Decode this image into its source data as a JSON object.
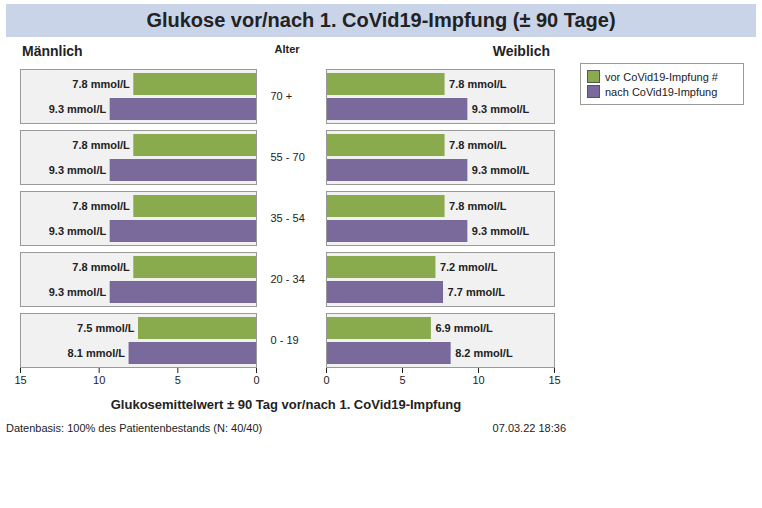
{
  "title": "Glukose vor/nach 1. CoVid19-Impfung (± 90 Tage)",
  "xlabel": "Glukosemittelwert ± 90 Tag vor/nach 1. CoVid19-Impfung",
  "footer": "Datenbasis: 100% des Patientenbestands (N: 40/40)",
  "date": "07.03.22 18:36",
  "chart_data": [
    {
      "type": "bar",
      "orientation": "horizontal",
      "title": "Männlich",
      "ylabel": "Alter",
      "categories": [
        "70 +",
        "55 - 70",
        "35 - 54",
        "20 - 34",
        "0 - 19"
      ],
      "series": [
        {
          "name": "vor CoVid19-Impfung #",
          "color": "#8aaa4e",
          "values": [
            7.8,
            7.8,
            7.8,
            7.8,
            7.5
          ],
          "value_labels": [
            "7.8 mmol/L",
            "7.8 mmol/L",
            "7.8 mmol/L",
            "7.8 mmol/L",
            "7.5 mmol/L"
          ]
        },
        {
          "name": "nach CoVid19-Impfung",
          "color": "#7a6a9c",
          "values": [
            9.3,
            9.3,
            9.3,
            9.3,
            8.1
          ],
          "value_labels": [
            "9.3 mmol/L",
            "9.3 mmol/L",
            "9.3 mmol/L",
            "9.3 mmol/L",
            "8.1 mmol/L"
          ]
        }
      ],
      "xlim": [
        0,
        15
      ],
      "xticks": [
        0,
        5,
        10,
        15
      ],
      "data_labels": true,
      "grid": false
    },
    {
      "type": "bar",
      "orientation": "horizontal",
      "title": "Weiblich",
      "legend": "right",
      "categories": [
        "70 +",
        "55 - 70",
        "35 - 54",
        "20 - 34",
        "0 - 19"
      ],
      "series": [
        {
          "name": "vor CoVid19-Impfung #",
          "color": "#8aaa4e",
          "values": [
            7.8,
            7.8,
            7.8,
            7.2,
            6.9
          ],
          "value_labels": [
            "7.8 mmol/L",
            "7.8 mmol/L",
            "7.8 mmol/L",
            "7.2 mmol/L",
            "6.9 mmol/L"
          ]
        },
        {
          "name": "nach CoVid19-Impfung",
          "color": "#7a6a9c",
          "values": [
            9.3,
            9.3,
            9.3,
            7.7,
            8.2
          ],
          "value_labels": [
            "9.3 mmol/L",
            "9.3 mmol/L",
            "9.3 mmol/L",
            "7.7 mmol/L",
            "8.2 mmol/L"
          ]
        }
      ],
      "xlim": [
        0,
        15
      ],
      "xticks": [
        0,
        5,
        10,
        15
      ],
      "data_labels": true,
      "grid": false
    }
  ]
}
